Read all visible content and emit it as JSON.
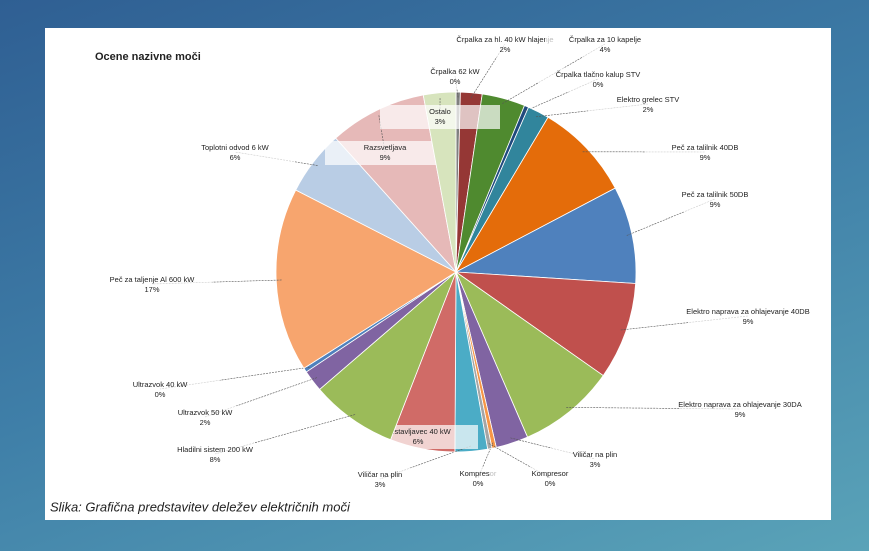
{
  "chart_data": {
    "type": "pie",
    "title": "Ocene nazivne moči",
    "categories": [
      "Črpalka 62 kW",
      "Črpalka za hl. 40 kW hlajenje",
      "Črpalka za 10 kapelje",
      "Črpalka tlačno kalup STV",
      "Elektro grelec STV",
      "Peč za talilnik 40DB",
      "Peč za talilnik 50DB",
      "Elektro naprava za ohlajevanje 40DB",
      "Elektro naprava za ohlajevanje 30DA",
      "Viličar na plin",
      "Kompresor",
      "Kompresor",
      "Viličar na plin",
      "Sestavljavec 40 kW",
      "Hladilni sistem 200 kW",
      "Ultrazvok 50 kW",
      "Ultrazvok 40 kW",
      "Peč za taljenje Al 600 kW",
      "Toplotni odvod 6 kW",
      "Razsvetljava",
      "Ostalo"
    ],
    "values": [
      0.4,
      2,
      4,
      0.4,
      2,
      9,
      9,
      9,
      9,
      3,
      0.4,
      0.4,
      3,
      6,
      8,
      2,
      0.4,
      17,
      6,
      9,
      3
    ],
    "value_labels": [
      "0%",
      "2%",
      "4%",
      "0%",
      "2%",
      "9%",
      "9%",
      "9%",
      "9%",
      "3%",
      "0%",
      "0%",
      "3%",
      "6%",
      "8%",
      "2%",
      "0%",
      "17%",
      "6%",
      "9%",
      "3%"
    ],
    "colors": [
      "#7f7f7f",
      "#953735",
      "#4f8a2f",
      "#1f497d",
      "#31859c",
      "#e46c0a",
      "#4f81bd",
      "#c0504d",
      "#9bbb59",
      "#8064a2",
      "#f79646",
      "#a5a5a5",
      "#4bacc6",
      "#d06b67",
      "#9bbb59",
      "#8064a2",
      "#4f81bd",
      "#f7a56e",
      "#b9cde5",
      "#e6b9b8",
      "#d7e4bd"
    ]
  },
  "caption": "Slika: Grafična predstavitev deležev električnih moči"
}
